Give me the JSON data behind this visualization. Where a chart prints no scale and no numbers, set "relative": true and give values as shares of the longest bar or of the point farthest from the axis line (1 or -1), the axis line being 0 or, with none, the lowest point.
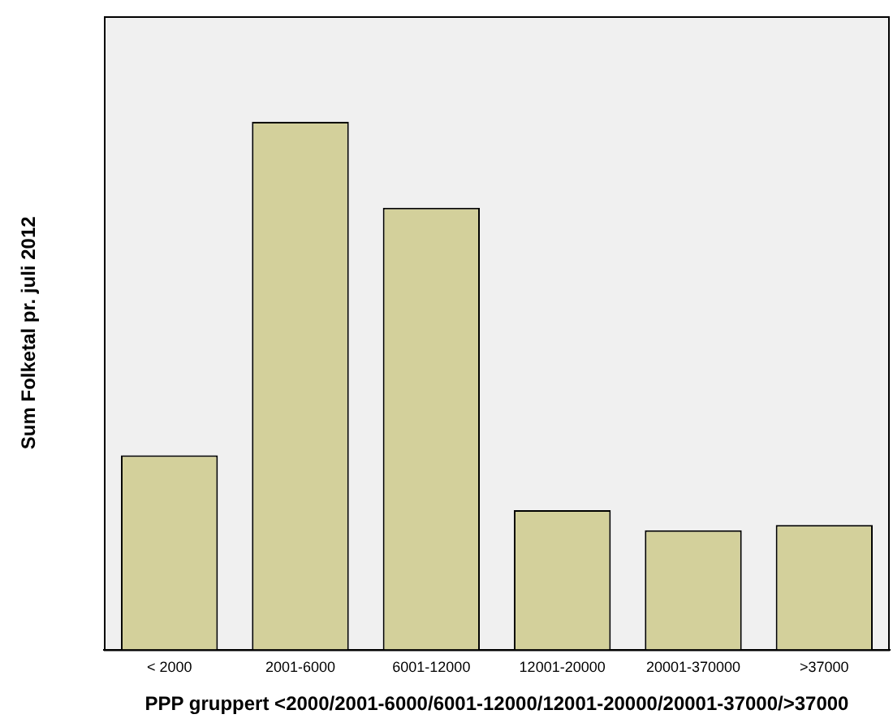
{
  "chart_data": {
    "type": "bar",
    "xlabel": "PPP gruppert <2000/2001-6000/6001-12000/12001-20000/20001-37000/>37000",
    "ylabel": "Sum Folketal pr. juli 2012",
    "categories": [
      "< 2000",
      "2001-6000",
      "6001-12000",
      "12001-20000",
      "20001-370000",
      ">37000"
    ],
    "values": [
      0.368,
      1,
      0.837,
      0.264,
      0.226,
      0.236
    ],
    "color": "#d3d09b",
    "relative": true,
    "grid": false,
    "legend": false
  }
}
